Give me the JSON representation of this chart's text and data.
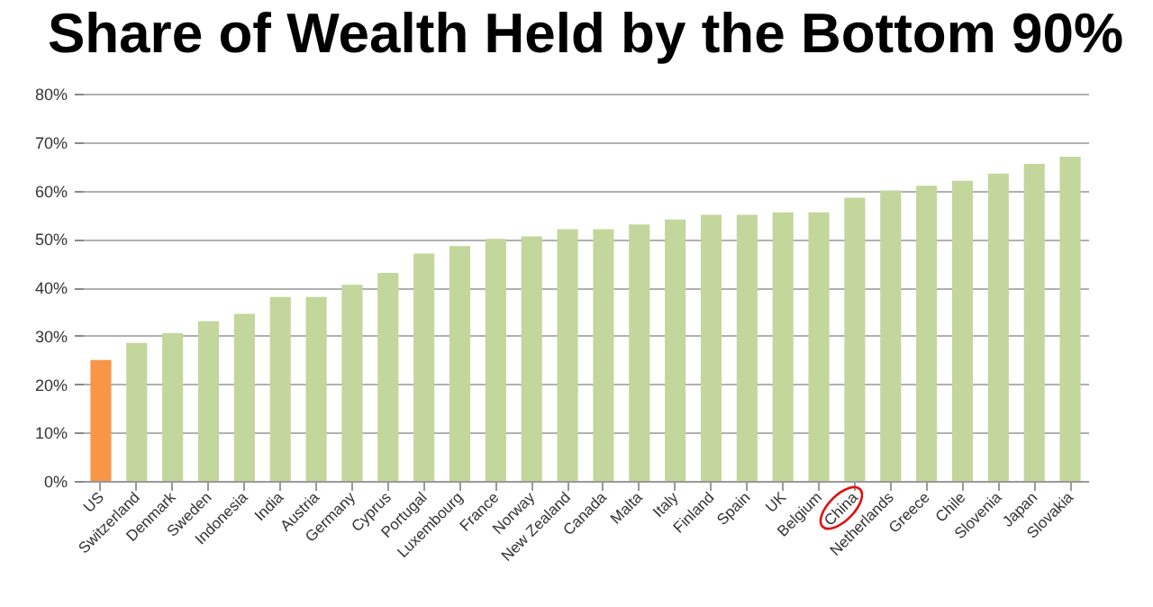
{
  "chart_data": {
    "type": "bar",
    "title": "Share of Wealth Held by the Bottom 90%",
    "categories": [
      "US",
      "Switzerland",
      "Denmark",
      "Sweden",
      "Indonesia",
      "India",
      "Austria",
      "Germany",
      "Cyprus",
      "Portugal",
      "Luxembourg",
      "France",
      "Norway",
      "New Zealand",
      "Canada",
      "Malta",
      "Italy",
      "Finland",
      "Spain",
      "UK",
      "Belgium",
      "China",
      "Netherlands",
      "Greece",
      "Chile",
      "Slovenia",
      "Japan",
      "Slovakia"
    ],
    "values": [
      25,
      28.5,
      30.5,
      33,
      34.5,
      38,
      38,
      40.5,
      43,
      47,
      48.5,
      50,
      50.5,
      52,
      52,
      53,
      54,
      55,
      55,
      55.5,
      55.5,
      58.5,
      60,
      61,
      62,
      63.5,
      65.5,
      67
    ],
    "colors": [
      "#f79646",
      "#c3d69b",
      "#c3d69b",
      "#c3d69b",
      "#c3d69b",
      "#c3d69b",
      "#c3d69b",
      "#c3d69b",
      "#c3d69b",
      "#c3d69b",
      "#c3d69b",
      "#c3d69b",
      "#c3d69b",
      "#c3d69b",
      "#c3d69b",
      "#c3d69b",
      "#c3d69b",
      "#c3d69b",
      "#c3d69b",
      "#c3d69b",
      "#c3d69b",
      "#c3d69b",
      "#c3d69b",
      "#c3d69b",
      "#c3d69b",
      "#c3d69b",
      "#c3d69b",
      "#c3d69b"
    ],
    "ylim": [
      0,
      80
    ],
    "yticks": [
      {
        "value": 0,
        "label": "0%"
      },
      {
        "value": 10,
        "label": "10%"
      },
      {
        "value": 20,
        "label": "20%"
      },
      {
        "value": 30,
        "label": "30%"
      },
      {
        "value": 40,
        "label": "40%"
      },
      {
        "value": 50,
        "label": "50%"
      },
      {
        "value": 60,
        "label": "60%"
      },
      {
        "value": 70,
        "label": "70%"
      },
      {
        "value": 80,
        "label": "80%"
      }
    ],
    "grid": "y"
  }
}
